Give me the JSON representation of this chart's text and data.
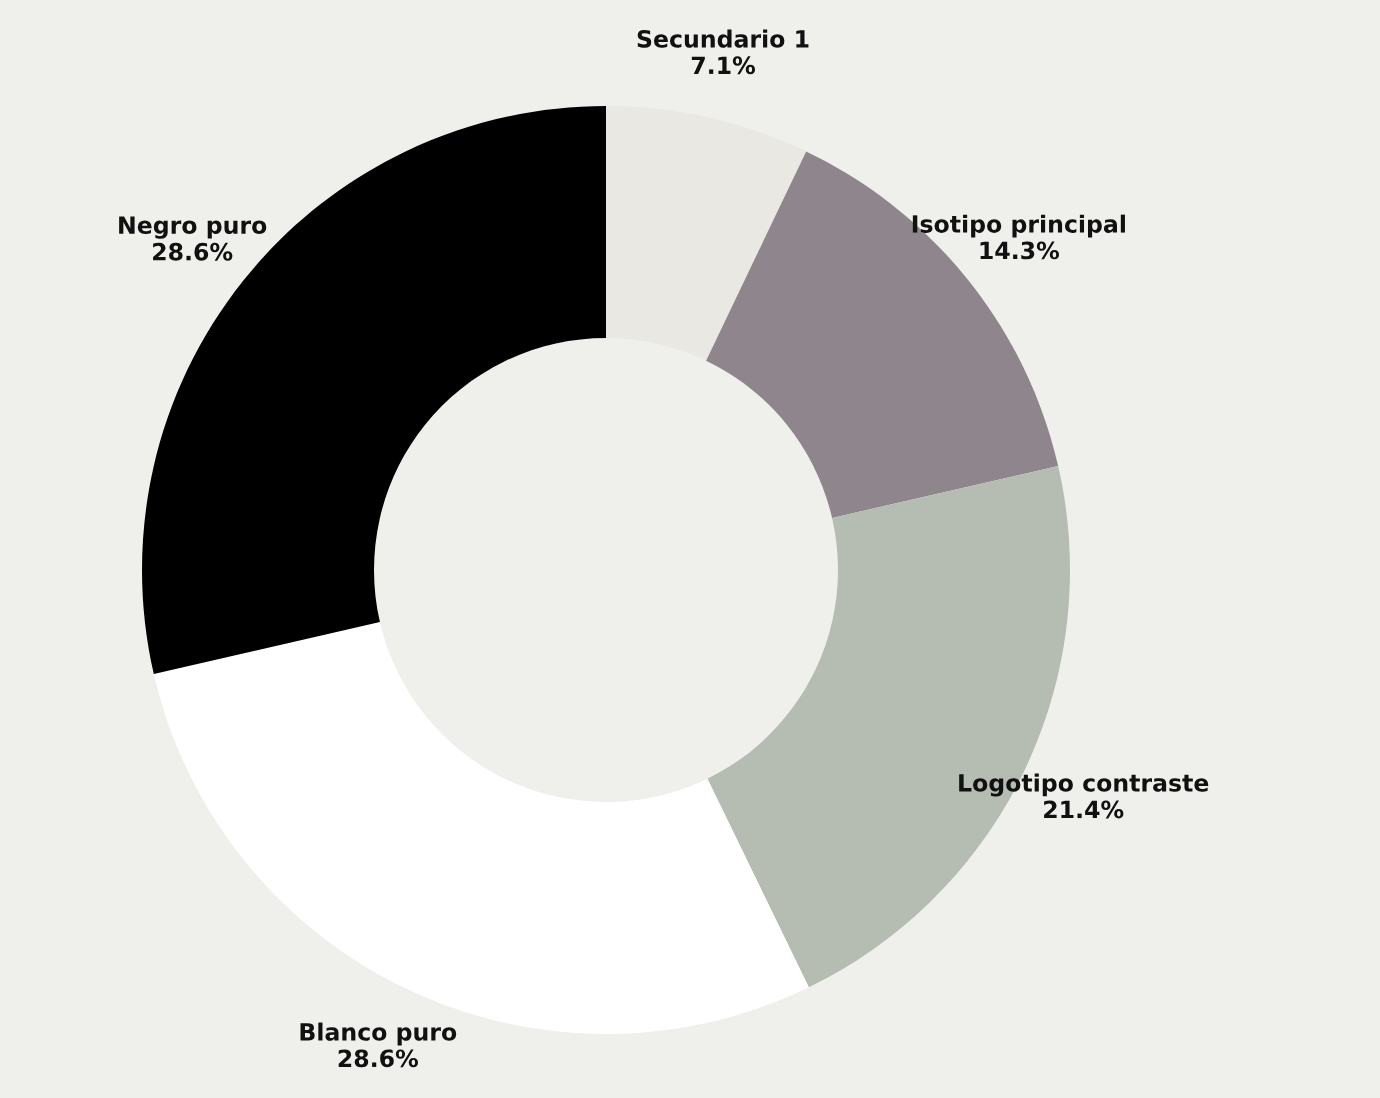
{
  "chart_data": {
    "type": "donut",
    "categories": [
      "Secundario 1",
      "Isotipo principal",
      "Logotipo contraste",
      "Blanco puro",
      "Negro puro"
    ],
    "values": [
      7.1,
      14.3,
      21.4,
      28.6,
      28.6
    ],
    "value_labels": [
      "7.1%",
      "14.3%",
      "21.4%",
      "28.6%",
      "28.6%"
    ],
    "colors": [
      "#e9e8e3",
      "#8f858c",
      "#b5bcb1",
      "#ffffff",
      "#000000"
    ]
  }
}
